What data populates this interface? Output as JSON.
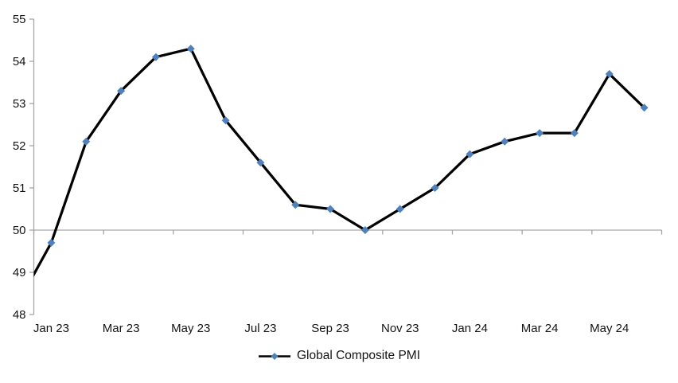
{
  "chart_data": {
    "type": "line",
    "title": "",
    "legend": {
      "position": "bottom",
      "label": "Global Composite PMI"
    },
    "series": [
      {
        "name": "Global Composite PMI",
        "categories": [
          "Jan 23",
          "Feb 23",
          "Mar 23",
          "Apr 23",
          "May 23",
          "Jun 23",
          "Jul 23",
          "Aug 23",
          "Sep 23",
          "Oct 23",
          "Nov 23",
          "Dec 23",
          "Jan 24",
          "Feb 24",
          "Mar 24",
          "Apr 24",
          "May 24",
          "Jun 24"
        ],
        "values": [
          49.7,
          52.1,
          53.3,
          54.1,
          54.3,
          52.6,
          51.6,
          50.6,
          50.5,
          50.0,
          50.5,
          51.0,
          51.8,
          52.1,
          52.3,
          52.3,
          53.7,
          52.9
        ],
        "pre_point": {
          "category": "Dec 22",
          "value": 48.2,
          "clipped_at_left_edge": true
        },
        "line_color": "#000000",
        "line_width": 3.25,
        "marker": {
          "shape": "diamond",
          "color": "#4F81BD",
          "half_size": 5
        }
      }
    ],
    "x_axis": {
      "tick_labels": [
        "Jan 23",
        "Mar 23",
        "May 23",
        "Jul 23",
        "Sep 23",
        "Nov 23",
        "Jan 24",
        "Mar 24",
        "May 24"
      ],
      "label_every_n_months": 2,
      "crosses_at_value": 50
    },
    "y_axis": {
      "min": 48,
      "max": 55,
      "step": 1,
      "tick_labels": [
        "55",
        "54",
        "53",
        "52",
        "51",
        "50",
        "49",
        "48"
      ]
    },
    "axis_color": "#A6A6A6",
    "grid": "none",
    "background": "#FFFFFF"
  }
}
